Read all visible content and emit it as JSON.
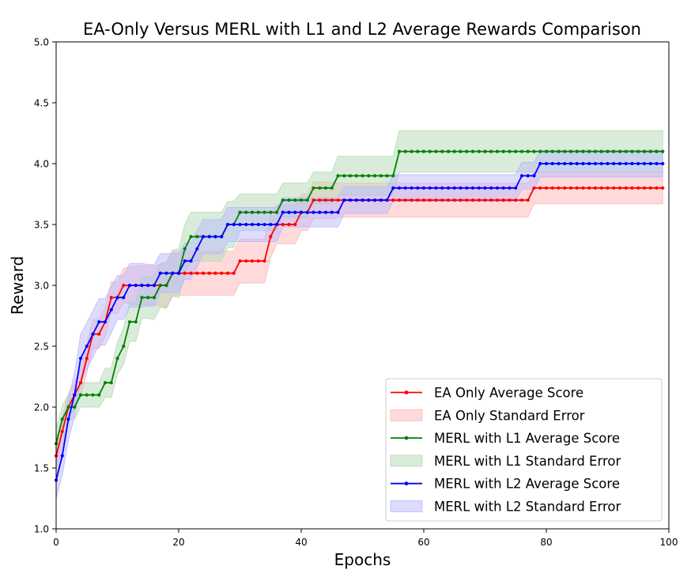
{
  "chart_data": {
    "type": "line",
    "title": "EA-Only Versus MERL with L1 and L2 Average Rewards Comparison",
    "xlabel": "Epochs",
    "ylabel": "Reward",
    "xlim": [
      0,
      100
    ],
    "ylim": [
      1.0,
      5.0
    ],
    "xticks": [
      "0",
      "20",
      "40",
      "60",
      "80",
      "100"
    ],
    "yticks": [
      "1.0",
      "1.5",
      "2.0",
      "2.5",
      "3.0",
      "3.5",
      "4.0",
      "4.5",
      "5.0"
    ],
    "grid": false,
    "legend_position": "lower-right",
    "series": [
      {
        "name": "EA Only Average Score",
        "band_name": "EA Only Standard Error",
        "color": "#ff0000",
        "band_color": "#ffb6b6",
        "values": [
          1.6,
          1.8,
          2.0,
          2.1,
          2.2,
          2.4,
          2.6,
          2.6,
          2.7,
          2.9,
          2.9,
          3.0,
          3.0,
          3.0,
          3.0,
          3.0,
          3.0,
          3.0,
          3.0,
          3.1,
          3.1,
          3.1,
          3.1,
          3.1,
          3.1,
          3.1,
          3.1,
          3.1,
          3.1,
          3.1,
          3.2,
          3.2,
          3.2,
          3.2,
          3.2,
          3.4,
          3.5,
          3.5,
          3.5,
          3.5,
          3.6,
          3.6,
          3.7,
          3.7,
          3.7,
          3.7,
          3.7,
          3.7,
          3.7,
          3.7,
          3.7,
          3.7,
          3.7,
          3.7,
          3.7,
          3.7,
          3.7,
          3.7,
          3.7,
          3.7,
          3.7,
          3.7,
          3.7,
          3.7,
          3.7,
          3.7,
          3.7,
          3.7,
          3.7,
          3.7,
          3.7,
          3.7,
          3.7,
          3.7,
          3.7,
          3.7,
          3.7,
          3.7,
          3.8,
          3.8,
          3.8,
          3.8,
          3.8,
          3.8,
          3.8,
          3.8,
          3.8,
          3.8,
          3.8,
          3.8,
          3.8,
          3.8,
          3.8,
          3.8,
          3.8,
          3.8,
          3.8,
          3.8,
          3.8,
          3.8
        ],
        "stderr": [
          0.12,
          0.12,
          0.11,
          0.11,
          0.11,
          0.12,
          0.12,
          0.12,
          0.12,
          0.13,
          0.13,
          0.14,
          0.15,
          0.16,
          0.16,
          0.16,
          0.16,
          0.17,
          0.18,
          0.18,
          0.18,
          0.18,
          0.18,
          0.18,
          0.18,
          0.18,
          0.18,
          0.18,
          0.18,
          0.18,
          0.18,
          0.18,
          0.18,
          0.18,
          0.18,
          0.17,
          0.16,
          0.16,
          0.16,
          0.16,
          0.15,
          0.15,
          0.15,
          0.15,
          0.15,
          0.15,
          0.14,
          0.14,
          0.14,
          0.14,
          0.14,
          0.14,
          0.14,
          0.14,
          0.14,
          0.14,
          0.14,
          0.14,
          0.14,
          0.14,
          0.14,
          0.14,
          0.14,
          0.14,
          0.14,
          0.14,
          0.14,
          0.14,
          0.14,
          0.14,
          0.14,
          0.14,
          0.14,
          0.14,
          0.14,
          0.14,
          0.14,
          0.14,
          0.13,
          0.13,
          0.13,
          0.13,
          0.13,
          0.13,
          0.13,
          0.13,
          0.13,
          0.13,
          0.13,
          0.13,
          0.13,
          0.13,
          0.13,
          0.13,
          0.13,
          0.13,
          0.13,
          0.13,
          0.13,
          0.13
        ]
      },
      {
        "name": "MERL with L1 Average Score",
        "band_name": "MERL with L1 Standard Error",
        "color": "#008000",
        "band_color": "#b3d9b3",
        "values": [
          1.7,
          1.9,
          2.0,
          2.0,
          2.1,
          2.1,
          2.1,
          2.1,
          2.2,
          2.2,
          2.4,
          2.5,
          2.7,
          2.7,
          2.9,
          2.9,
          2.9,
          3.0,
          3.0,
          3.1,
          3.1,
          3.3,
          3.4,
          3.4,
          3.4,
          3.4,
          3.4,
          3.4,
          3.5,
          3.5,
          3.6,
          3.6,
          3.6,
          3.6,
          3.6,
          3.6,
          3.6,
          3.7,
          3.7,
          3.7,
          3.7,
          3.7,
          3.8,
          3.8,
          3.8,
          3.8,
          3.9,
          3.9,
          3.9,
          3.9,
          3.9,
          3.9,
          3.9,
          3.9,
          3.9,
          3.9,
          4.1,
          4.1,
          4.1,
          4.1,
          4.1,
          4.1,
          4.1,
          4.1,
          4.1,
          4.1,
          4.1,
          4.1,
          4.1,
          4.1,
          4.1,
          4.1,
          4.1,
          4.1,
          4.1,
          4.1,
          4.1,
          4.1,
          4.1,
          4.1,
          4.1,
          4.1,
          4.1,
          4.1,
          4.1,
          4.1,
          4.1,
          4.1,
          4.1,
          4.1,
          4.1,
          4.1,
          4.1,
          4.1,
          4.1,
          4.1,
          4.1,
          4.1,
          4.1,
          4.1
        ],
        "stderr": [
          0.12,
          0.11,
          0.1,
          0.1,
          0.1,
          0.1,
          0.1,
          0.1,
          0.12,
          0.12,
          0.13,
          0.15,
          0.16,
          0.16,
          0.17,
          0.17,
          0.18,
          0.18,
          0.19,
          0.19,
          0.2,
          0.2,
          0.2,
          0.2,
          0.2,
          0.2,
          0.2,
          0.2,
          0.19,
          0.19,
          0.15,
          0.15,
          0.15,
          0.15,
          0.15,
          0.15,
          0.15,
          0.14,
          0.14,
          0.14,
          0.14,
          0.14,
          0.13,
          0.13,
          0.13,
          0.13,
          0.16,
          0.16,
          0.16,
          0.16,
          0.16,
          0.16,
          0.16,
          0.16,
          0.16,
          0.16,
          0.17,
          0.17,
          0.17,
          0.17,
          0.17,
          0.17,
          0.17,
          0.17,
          0.17,
          0.17,
          0.17,
          0.17,
          0.17,
          0.17,
          0.17,
          0.17,
          0.17,
          0.17,
          0.17,
          0.17,
          0.17,
          0.17,
          0.17,
          0.17,
          0.17,
          0.17,
          0.17,
          0.17,
          0.17,
          0.17,
          0.17,
          0.17,
          0.17,
          0.17,
          0.17,
          0.17,
          0.17,
          0.17,
          0.17,
          0.17,
          0.17,
          0.17,
          0.17,
          0.17
        ]
      },
      {
        "name": "MERL with L2 Average Score",
        "band_name": "MERL with L2 Standard Error",
        "color": "#0000ff",
        "band_color": "#b9b9ff",
        "values": [
          1.4,
          1.6,
          1.9,
          2.1,
          2.4,
          2.5,
          2.6,
          2.7,
          2.7,
          2.8,
          2.9,
          2.9,
          3.0,
          3.0,
          3.0,
          3.0,
          3.0,
          3.1,
          3.1,
          3.1,
          3.1,
          3.2,
          3.2,
          3.3,
          3.4,
          3.4,
          3.4,
          3.4,
          3.5,
          3.5,
          3.5,
          3.5,
          3.5,
          3.5,
          3.5,
          3.5,
          3.5,
          3.6,
          3.6,
          3.6,
          3.6,
          3.6,
          3.6,
          3.6,
          3.6,
          3.6,
          3.6,
          3.7,
          3.7,
          3.7,
          3.7,
          3.7,
          3.7,
          3.7,
          3.7,
          3.8,
          3.8,
          3.8,
          3.8,
          3.8,
          3.8,
          3.8,
          3.8,
          3.8,
          3.8,
          3.8,
          3.8,
          3.8,
          3.8,
          3.8,
          3.8,
          3.8,
          3.8,
          3.8,
          3.8,
          3.8,
          3.9,
          3.9,
          3.9,
          4.0,
          4.0,
          4.0,
          4.0,
          4.0,
          4.0,
          4.0,
          4.0,
          4.0,
          4.0,
          4.0,
          4.0,
          4.0,
          4.0,
          4.0,
          4.0,
          4.0,
          4.0,
          4.0,
          4.0,
          4.0
        ],
        "stderr": [
          0.15,
          0.16,
          0.17,
          0.18,
          0.2,
          0.19,
          0.19,
          0.19,
          0.19,
          0.19,
          0.18,
          0.18,
          0.18,
          0.18,
          0.18,
          0.17,
          0.17,
          0.16,
          0.16,
          0.16,
          0.16,
          0.15,
          0.15,
          0.15,
          0.14,
          0.14,
          0.14,
          0.14,
          0.14,
          0.14,
          0.14,
          0.14,
          0.14,
          0.14,
          0.14,
          0.14,
          0.14,
          0.12,
          0.12,
          0.12,
          0.12,
          0.12,
          0.12,
          0.12,
          0.12,
          0.12,
          0.12,
          0.11,
          0.11,
          0.11,
          0.11,
          0.11,
          0.11,
          0.11,
          0.11,
          0.11,
          0.11,
          0.11,
          0.11,
          0.11,
          0.11,
          0.11,
          0.11,
          0.11,
          0.11,
          0.11,
          0.11,
          0.11,
          0.11,
          0.11,
          0.11,
          0.11,
          0.11,
          0.11,
          0.11,
          0.11,
          0.11,
          0.11,
          0.11,
          0.11,
          0.11,
          0.11,
          0.11,
          0.11,
          0.11,
          0.11,
          0.11,
          0.11,
          0.11,
          0.11,
          0.11,
          0.11,
          0.11,
          0.11,
          0.11,
          0.11,
          0.11,
          0.11,
          0.11,
          0.11
        ]
      }
    ]
  }
}
